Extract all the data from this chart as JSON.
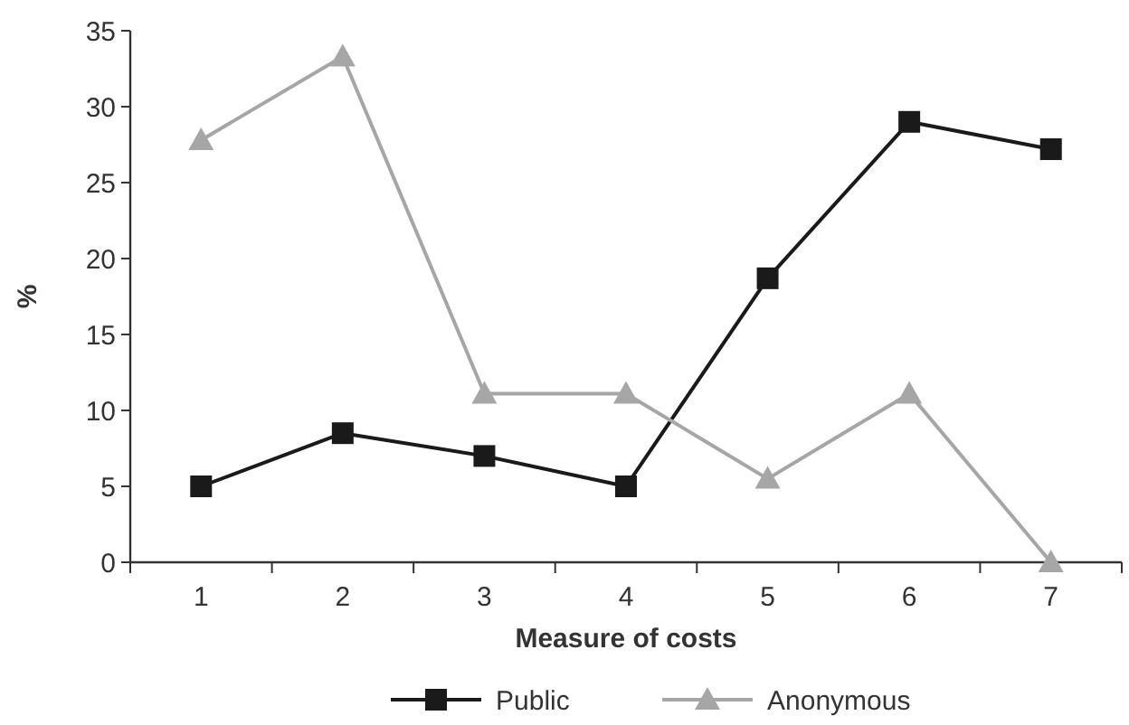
{
  "chart_data": {
    "type": "line",
    "xlabel": "Measure of costs",
    "ylabel": "%",
    "categories": [
      "1",
      "2",
      "3",
      "4",
      "5",
      "6",
      "7"
    ],
    "series": [
      {
        "name": "Public",
        "color": "#1a1a1a",
        "marker": "square",
        "values": [
          5,
          8.5,
          7,
          5,
          18.7,
          29,
          27.2
        ]
      },
      {
        "name": "Anonymous",
        "color": "#a6a6a6",
        "marker": "triangle",
        "values": [
          27.8,
          33.3,
          11.1,
          11.1,
          5.5,
          11.1,
          0
        ]
      }
    ],
    "ylim": [
      0,
      35
    ],
    "yticks": [
      0,
      5,
      10,
      15,
      20,
      25,
      30,
      35
    ],
    "grid": false,
    "legend": "bottom"
  }
}
